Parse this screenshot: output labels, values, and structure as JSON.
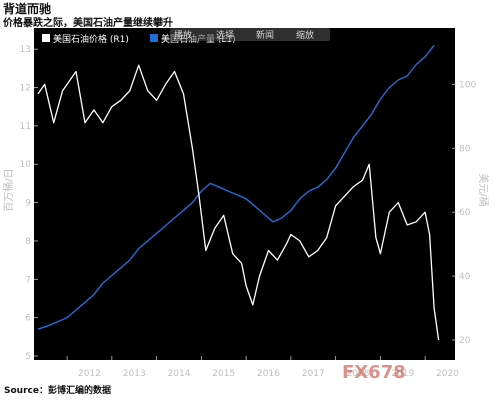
{
  "header": {
    "title": "背道而驰",
    "subtitle": "价格暴跌之际，美国石油产量继续攀升"
  },
  "footer": {
    "source": "Source：彭博汇编的数据",
    "watermark": "FX678"
  },
  "toolbar": {
    "items": [
      "播放",
      "选择",
      "新闻",
      "缩放"
    ]
  },
  "colors": {
    "background": "#000000",
    "price_line": "#ffffff",
    "production_line": "#1f6fd6",
    "grid": "#3a3a3a",
    "tick_text": "#bfbfbf"
  },
  "chart_data": {
    "type": "line",
    "legend_placement": "top-left",
    "grid": false,
    "x_range": [
      2011.35,
      2020.6
    ],
    "x_ticks": [
      "2012",
      "2013",
      "2014",
      "2015",
      "2016",
      "2017",
      "2018",
      "2019",
      "2020"
    ],
    "left_axis": {
      "label": "百万桶/日",
      "ylim": [
        5,
        13.5
      ],
      "ticks": [
        5,
        6,
        7,
        8,
        9,
        10,
        11,
        12,
        13
      ]
    },
    "right_axis": {
      "label": "美元/桶",
      "ylim": [
        15,
        117
      ],
      "ticks": [
        20,
        40,
        60,
        80,
        100
      ]
    },
    "series": [
      {
        "name": "美国石油产量 (L1)",
        "axis": "left",
        "color": "#1f6fd6",
        "x": [
          2011.35,
          2011.6,
          2011.8,
          2012.0,
          2012.2,
          2012.4,
          2012.6,
          2012.8,
          2013.0,
          2013.2,
          2013.4,
          2013.6,
          2013.8,
          2014.0,
          2014.2,
          2014.4,
          2014.6,
          2014.8,
          2015.0,
          2015.2,
          2015.4,
          2015.6,
          2015.8,
          2016.0,
          2016.2,
          2016.4,
          2016.6,
          2016.8,
          2017.0,
          2017.2,
          2017.4,
          2017.6,
          2017.8,
          2018.0,
          2018.2,
          2018.4,
          2018.6,
          2018.8,
          2019.0,
          2019.2,
          2019.4,
          2019.6,
          2019.8,
          2020.0,
          2020.2
        ],
        "values": [
          5.7,
          5.8,
          5.9,
          6.0,
          6.2,
          6.4,
          6.6,
          6.9,
          7.1,
          7.3,
          7.5,
          7.8,
          8.0,
          8.2,
          8.4,
          8.6,
          8.8,
          9.0,
          9.3,
          9.5,
          9.4,
          9.3,
          9.2,
          9.1,
          8.9,
          8.7,
          8.5,
          8.6,
          8.8,
          9.1,
          9.3,
          9.4,
          9.6,
          9.9,
          10.3,
          10.7,
          11.0,
          11.3,
          11.7,
          12.0,
          12.2,
          12.3,
          12.6,
          12.8,
          13.1
        ]
      },
      {
        "name": "美国石油价格 (R1)",
        "axis": "right",
        "color": "#ffffff",
        "x": [
          2011.35,
          2011.5,
          2011.7,
          2011.9,
          2012.0,
          2012.2,
          2012.4,
          2012.6,
          2012.8,
          2013.0,
          2013.2,
          2013.4,
          2013.6,
          2013.8,
          2014.0,
          2014.2,
          2014.4,
          2014.6,
          2014.8,
          2014.95,
          2015.1,
          2015.3,
          2015.5,
          2015.7,
          2015.9,
          2016.0,
          2016.15,
          2016.3,
          2016.5,
          2016.7,
          2016.9,
          2017.0,
          2017.2,
          2017.4,
          2017.6,
          2017.8,
          2018.0,
          2018.2,
          2018.4,
          2018.6,
          2018.75,
          2018.9,
          2019.0,
          2019.2,
          2019.4,
          2019.6,
          2019.8,
          2020.0,
          2020.1,
          2020.2,
          2020.3
        ],
        "values": [
          97,
          100,
          88,
          98,
          100,
          104,
          88,
          92,
          88,
          93,
          95,
          98,
          106,
          98,
          95,
          100,
          104,
          97,
          80,
          65,
          48,
          55,
          59,
          47,
          44,
          37,
          31,
          40,
          48,
          45,
          50,
          53,
          51,
          46,
          48,
          52,
          62,
          65,
          68,
          70,
          75,
          52,
          47,
          60,
          63,
          56,
          57,
          60,
          53,
          30,
          20
        ]
      }
    ]
  }
}
